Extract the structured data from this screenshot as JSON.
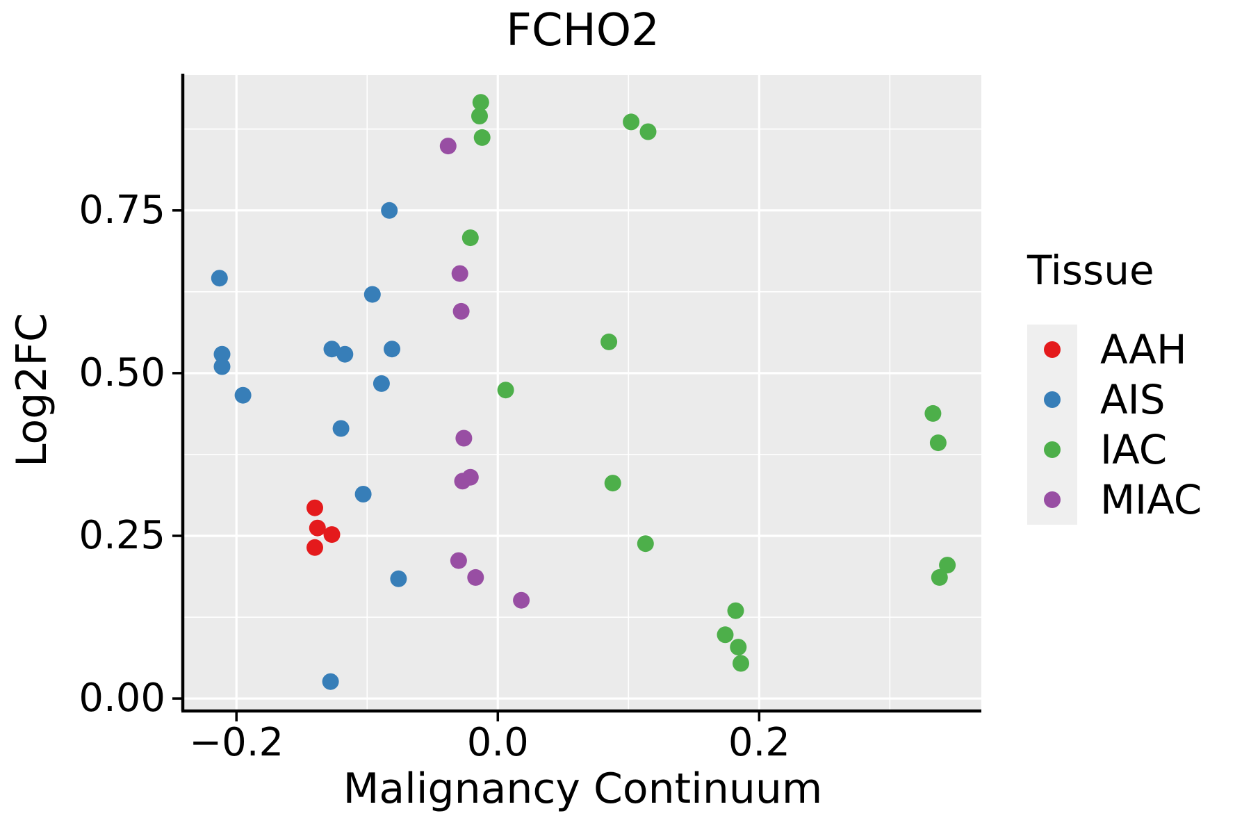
{
  "title": "FCHO2",
  "axes": {
    "x": {
      "title": "Malignancy Continuum",
      "tick_labels": [
        "−0.2",
        "0.0",
        "0.2"
      ],
      "tick_values": [
        -0.2,
        0.0,
        0.2
      ],
      "minor_tick_values": [
        -0.1,
        0.1,
        0.3
      ],
      "range": [
        -0.24,
        0.37
      ]
    },
    "y": {
      "title": "Log2FC",
      "tick_labels": [
        "0.00",
        "0.25",
        "0.50",
        "0.75"
      ],
      "tick_values": [
        0.0,
        0.25,
        0.5,
        0.75
      ],
      "minor_tick_values": [
        0.125,
        0.375,
        0.625,
        0.875
      ],
      "range": [
        -0.017,
        0.958
      ]
    }
  },
  "legend": {
    "title": "Tissue",
    "entries": [
      {
        "label": "AAH",
        "color": "#E41A1C"
      },
      {
        "label": "AIS",
        "color": "#377EB8"
      },
      {
        "label": "IAC",
        "color": "#4DAF4A"
      },
      {
        "label": "MIAC",
        "color": "#984EA3"
      }
    ]
  },
  "style": {
    "panel_background": "#EBEBEB",
    "legend_key_background": "#EFEFEF",
    "gridline_color": "#FFFFFF",
    "axis_color": "#000000",
    "text_color": "#000000"
  },
  "chart_data": {
    "type": "scatter",
    "title": "FCHO2",
    "xlabel": "Malignancy Continuum",
    "ylabel": "Log2FC",
    "xlim": [
      -0.24,
      0.37
    ],
    "ylim": [
      -0.017,
      0.958
    ],
    "x_major_ticks": [
      -0.2,
      0.0,
      0.2
    ],
    "x_minor_gridlines": [
      -0.1,
      0.1,
      0.3
    ],
    "y_major_ticks": [
      0.0,
      0.25,
      0.5,
      0.75
    ],
    "y_minor_gridlines": [
      0.125,
      0.375,
      0.625,
      0.875
    ],
    "grid": "white major and minor gridlines on gray panel",
    "legend_position": "right",
    "legend_title": "Tissue",
    "point_radius_px": 12,
    "series": [
      {
        "name": "AAH",
        "color": "#E41A1C",
        "points": [
          [
            -0.14,
            0.293
          ],
          [
            -0.138,
            0.262
          ],
          [
            -0.127,
            0.252
          ],
          [
            -0.14,
            0.232
          ]
        ]
      },
      {
        "name": "AIS",
        "color": "#377EB8",
        "points": [
          [
            -0.083,
            0.75
          ],
          [
            -0.213,
            0.646
          ],
          [
            -0.096,
            0.621
          ],
          [
            -0.127,
            0.537
          ],
          [
            -0.117,
            0.529
          ],
          [
            -0.081,
            0.537
          ],
          [
            -0.211,
            0.529
          ],
          [
            -0.211,
            0.51
          ],
          [
            -0.089,
            0.484
          ],
          [
            -0.195,
            0.466
          ],
          [
            -0.12,
            0.415
          ],
          [
            -0.103,
            0.314
          ],
          [
            -0.076,
            0.184
          ],
          [
            -0.128,
            0.026
          ]
        ]
      },
      {
        "name": "IAC",
        "color": "#4DAF4A",
        "points": [
          [
            -0.013,
            0.916
          ],
          [
            -0.014,
            0.895
          ],
          [
            -0.012,
            0.862
          ],
          [
            0.102,
            0.886
          ],
          [
            0.115,
            0.871
          ],
          [
            -0.021,
            0.708
          ],
          [
            0.085,
            0.548
          ],
          [
            0.006,
            0.474
          ],
          [
            0.088,
            0.331
          ],
          [
            0.113,
            0.238
          ],
          [
            0.182,
            0.135
          ],
          [
            0.174,
            0.098
          ],
          [
            0.184,
            0.079
          ],
          [
            0.186,
            0.054
          ],
          [
            0.333,
            0.438
          ],
          [
            0.337,
            0.393
          ],
          [
            0.344,
            0.205
          ],
          [
            0.338,
            0.186
          ]
        ]
      },
      {
        "name": "MIAC",
        "color": "#984EA3",
        "points": [
          [
            -0.038,
            0.849
          ],
          [
            -0.029,
            0.653
          ],
          [
            -0.028,
            0.595
          ],
          [
            -0.026,
            0.4
          ],
          [
            -0.027,
            0.334
          ],
          [
            -0.021,
            0.34
          ],
          [
            -0.03,
            0.212
          ],
          [
            -0.017,
            0.186
          ],
          [
            0.018,
            0.151
          ]
        ]
      }
    ]
  }
}
